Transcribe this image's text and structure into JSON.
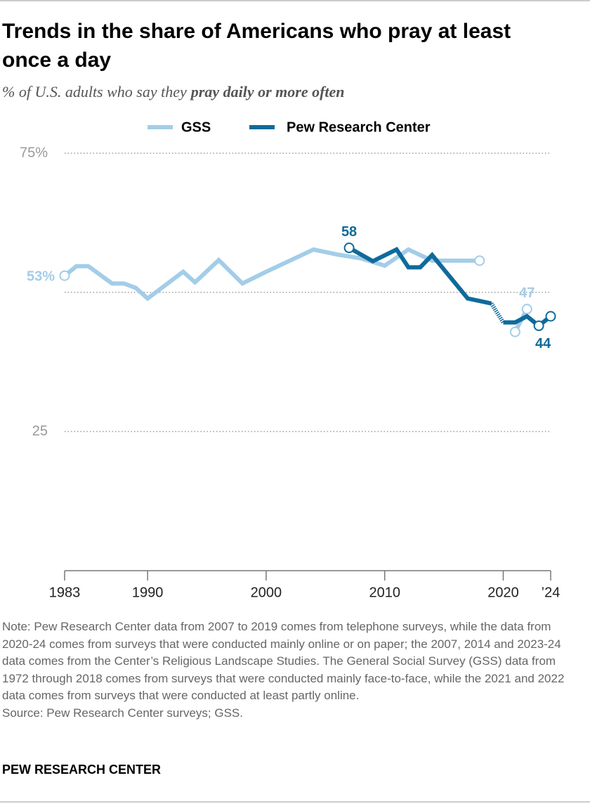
{
  "chart_data": {
    "type": "line",
    "title": [
      "Trends in the share of Americans who pray at least",
      "once a day"
    ],
    "subtitle": [
      "% of U.S. adults who say they",
      "pray daily or more often"
    ],
    "xlim": [
      1983,
      2024
    ],
    "xticks": [
      1983,
      1990,
      2000,
      2010,
      2020,
      {
        "value": 2024,
        "label": "’24"
      }
    ],
    "ylim": [
      0,
      75
    ],
    "yticks": [
      25,
      {
        "value": 75,
        "label": "75%"
      }
    ],
    "grid_lines": [
      25,
      50,
      75
    ],
    "legend": "top",
    "series": [
      {
        "name": "GSS",
        "color": "#a3cde8",
        "x": [
          1983,
          1984,
          1985,
          1987,
          1988,
          1989,
          1990,
          1993,
          1994,
          1996,
          1998,
          2000,
          2004,
          2006,
          2008,
          2010,
          2012,
          2014,
          2016,
          2018,
          2020,
          2021,
          2022
        ],
        "values": [
          53,
          54.7,
          54.7,
          51.6,
          51.6,
          50.8,
          48.9,
          53.7,
          51.8,
          55.8,
          51.6,
          53.7,
          57.7,
          56.8,
          56.1,
          54.8,
          57.7,
          55.7,
          55.7,
          55.7,
          null,
          42.9,
          47
        ],
        "value_labels": [
          "53%",
          null,
          null,
          null,
          null,
          null,
          null,
          null,
          null,
          null,
          null,
          null,
          null,
          null,
          null,
          null,
          null,
          null,
          null,
          null,
          null,
          null,
          "47"
        ]
      },
      {
        "name": "Pew Research Center",
        "color": "#0f6a9b",
        "dotted_from_x": 2019,
        "x": [
          2007,
          2009,
          2011,
          2012,
          2013,
          2014,
          2017,
          2019,
          2020,
          2021,
          2022,
          2023,
          2024
        ],
        "values": [
          58,
          55.6,
          57.7,
          54.5,
          54.5,
          56.7,
          48.9,
          48,
          44.6,
          44.6,
          45.7,
          44,
          45.7
        ],
        "value_labels": [
          "58",
          null,
          null,
          null,
          null,
          null,
          null,
          null,
          null,
          null,
          null,
          "44",
          null
        ]
      }
    ]
  },
  "note": "Note: Pew Research Center data from 2007 to 2019 comes from telephone surveys, while the data from 2020-24 comes from surveys that were conducted mainly online or on paper; the 2007, 2014 and 2023-24 data comes from the Center’s Religious Landscape Studies. The General Social Survey (GSS) data from 1972 through 2018 comes from surveys that were conducted mainly face-to-face, while the 2021 and 2022 data comes from surveys that were conducted at least partly online.",
  "source": "Source: Pew Research Center surveys; GSS.",
  "brand": "PEW RESEARCH CENTER"
}
